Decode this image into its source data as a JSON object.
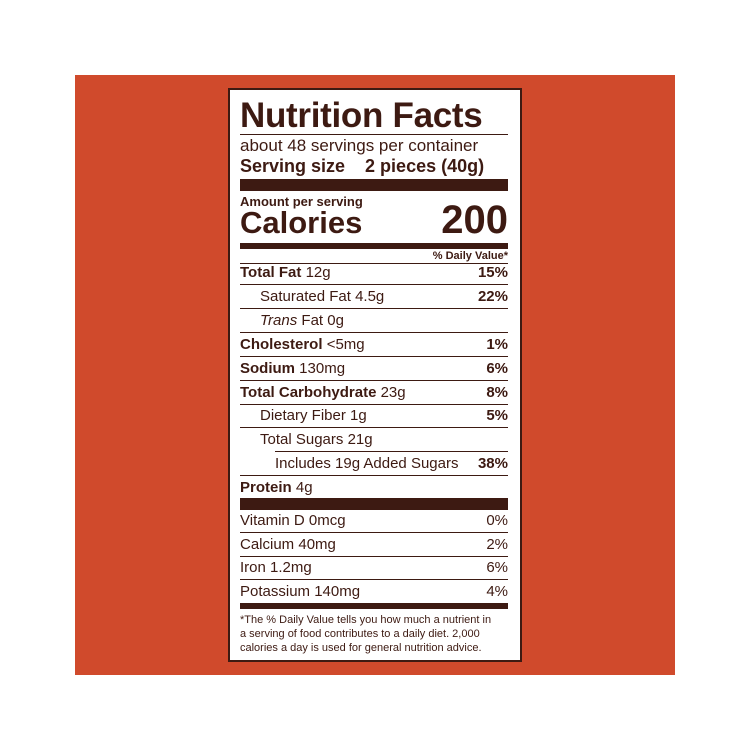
{
  "label": {
    "title": "Nutrition Facts",
    "servings": "about 48 servings per container",
    "serving_size": {
      "label": "Serving size",
      "value": "2 pieces (40g)"
    },
    "amount_per_serving": "Amount per serving",
    "calories": {
      "label": "Calories",
      "value": "200"
    },
    "daily_value_header": "% Daily Value*",
    "nutrients": [
      {
        "label": "Total Fat",
        "amount": "12g",
        "dv": "15%"
      },
      {
        "label": "Saturated Fat",
        "amount": "4.5g",
        "dv": "22%"
      },
      {
        "label_italic": "Trans",
        "label": "Fat",
        "amount": "0g"
      },
      {
        "label": "Cholesterol",
        "amount": "<5mg",
        "dv": "1%"
      },
      {
        "label": "Sodium",
        "amount": "130mg",
        "dv": "6%"
      },
      {
        "label": "Total Carbohydrate",
        "amount": "23g",
        "dv": "8%"
      },
      {
        "label": "Dietary Fiber",
        "amount": "1g",
        "dv": "5%"
      },
      {
        "label": "Total Sugars",
        "amount": "21g"
      },
      {
        "label": "Includes 19g Added Sugars",
        "dv": "38%"
      },
      {
        "label": "Protein",
        "amount": "4g"
      }
    ],
    "vitamins": [
      {
        "label": "Vitamin D",
        "amount": "0mcg",
        "dv": "0%"
      },
      {
        "label": "Calcium",
        "amount": "40mg",
        "dv": "2%"
      },
      {
        "label": "Iron",
        "amount": "1.2mg",
        "dv": "6%"
      },
      {
        "label": "Potassium",
        "amount": "140mg",
        "dv": "4%"
      }
    ],
    "footnote": [
      "*The % Daily Value tells you how much a nutrient in",
      "a serving of food contributes to a daily diet. 2,000",
      "calories a day is used for general nutrition advice."
    ]
  }
}
